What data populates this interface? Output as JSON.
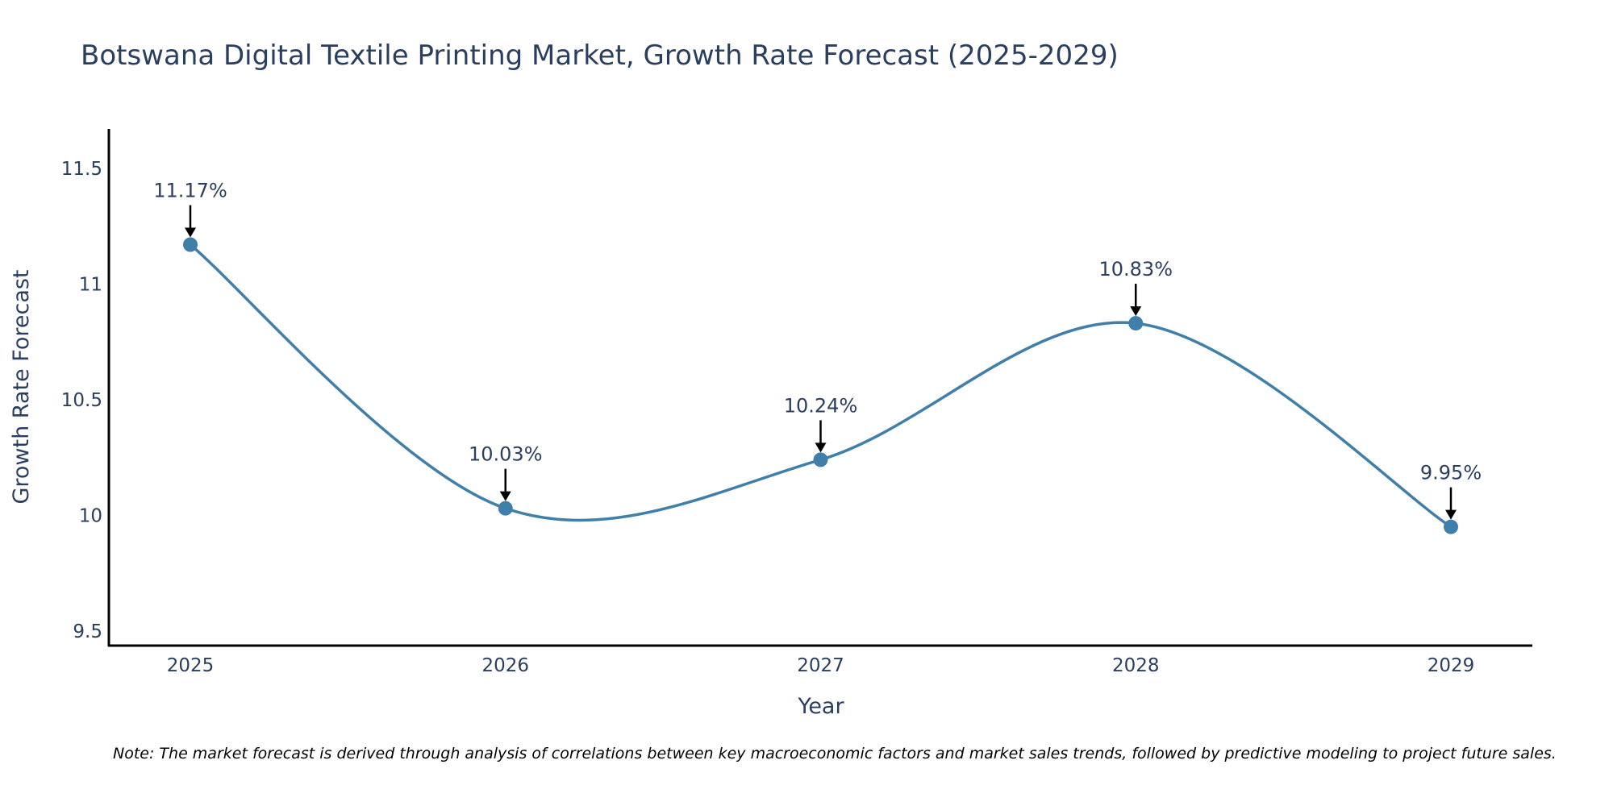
{
  "chart_data": {
    "type": "line",
    "title": "Botswana Digital Textile Printing Market, Growth Rate Forecast (2025-2029)",
    "xlabel": "Year",
    "ylabel": "Growth Rate Forecast",
    "categories": [
      "2025",
      "2026",
      "2027",
      "2028",
      "2029"
    ],
    "values": [
      11.17,
      10.03,
      10.24,
      10.83,
      9.95
    ],
    "data_labels": [
      "11.17%",
      "10.03%",
      "10.24%",
      "10.83%",
      "9.95%"
    ],
    "ylim": [
      9.44,
      11.67
    ],
    "yticks": [
      9.5,
      10,
      10.5,
      11,
      11.5
    ],
    "ytick_labels": [
      "9.5",
      "10",
      "10.5",
      "11",
      "11.5"
    ],
    "line_shape": "spline",
    "grid": false,
    "colors": {
      "line": "#3f7faa",
      "marker": "#3f7faa",
      "axis": "#000000",
      "text": "#2a3f5f"
    },
    "note": "Note: The market forecast is derived through analysis of correlations between key macroeconomic factors and market sales trends, followed by predictive modeling to project future sales."
  }
}
